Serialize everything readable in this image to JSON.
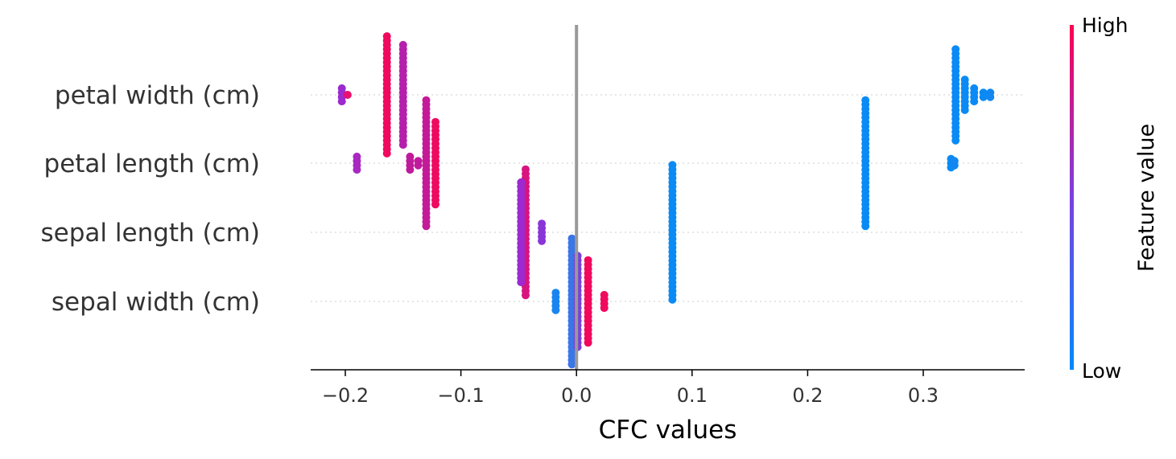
{
  "chart_data": {
    "type": "scatter",
    "subtype": "beeswarm",
    "xlabel": "CFC values",
    "xlim": [
      -0.232,
      0.387
    ],
    "xticks": [
      -0.2,
      -0.1,
      0.0,
      0.1,
      0.2,
      0.3
    ],
    "xtick_labels": [
      "−0.2",
      "−0.1",
      "0.0",
      "0.1",
      "0.2",
      "0.3"
    ],
    "zero_line": 0.0,
    "features": [
      "petal width (cm)",
      "petal length (cm)",
      "sepal length (cm)",
      "sepal width (cm)"
    ],
    "colorbar": {
      "title": "Feature value",
      "high_label": "High",
      "low_label": "Low",
      "high_color": "#ff0052",
      "low_color": "#008bfb"
    },
    "clusters": [
      {
        "feature": "petal width (cm)",
        "points": [
          {
            "x": -0.203,
            "count": 4,
            "color": "#9c2ad0"
          },
          {
            "x": -0.198,
            "count": 1,
            "color": "#e8116e"
          },
          {
            "x": -0.164,
            "count": 28,
            "color": "#f0095e"
          },
          {
            "x": -0.15,
            "count": 24,
            "color": "#b420ab"
          },
          {
            "x": 0.328,
            "count": 22,
            "color": "#0a8af5"
          },
          {
            "x": 0.336,
            "count": 8,
            "color": "#0a8af5"
          },
          {
            "x": 0.344,
            "count": 4,
            "color": "#0a8af5"
          },
          {
            "x": 0.352,
            "count": 2,
            "color": "#0a8af5"
          },
          {
            "x": 0.358,
            "count": 2,
            "color": "#1287f0"
          }
        ]
      },
      {
        "feature": "petal length (cm)",
        "points": [
          {
            "x": -0.19,
            "count": 4,
            "color": "#a828c0"
          },
          {
            "x": -0.144,
            "count": 4,
            "color": "#c01a9c"
          },
          {
            "x": -0.137,
            "count": 2,
            "color": "#c01a9c"
          },
          {
            "x": -0.13,
            "count": 30,
            "color": "#c41a98"
          },
          {
            "x": -0.122,
            "count": 20,
            "color": "#ee0a60"
          },
          {
            "x": 0.25,
            "count": 30,
            "color": "#0a8af5"
          },
          {
            "x": 0.324,
            "count": 3,
            "color": "#0a8af5"
          },
          {
            "x": 0.327,
            "count": 2,
            "color": "#1287f0"
          }
        ]
      },
      {
        "feature": "sepal length (cm)",
        "points": [
          {
            "x": -0.044,
            "count": 30,
            "color": "#d8147f"
          },
          {
            "x": -0.048,
            "count": 24,
            "color": "#9c2ad0"
          },
          {
            "x": -0.03,
            "count": 5,
            "color": "#8a35d8"
          },
          {
            "x": 0.083,
            "count": 32,
            "color": "#0a8af5"
          }
        ]
      },
      {
        "feature": "sepal width (cm)",
        "points": [
          {
            "x": -0.018,
            "count": 5,
            "color": "#1a85f0"
          },
          {
            "x": -0.004,
            "count": 30,
            "color": "#3a76e8"
          },
          {
            "x": 0.001,
            "count": 22,
            "color": "#7a40d8"
          },
          {
            "x": 0.01,
            "count": 20,
            "color": "#f0095e"
          },
          {
            "x": 0.024,
            "count": 4,
            "color": "#f0095e"
          }
        ]
      }
    ]
  }
}
